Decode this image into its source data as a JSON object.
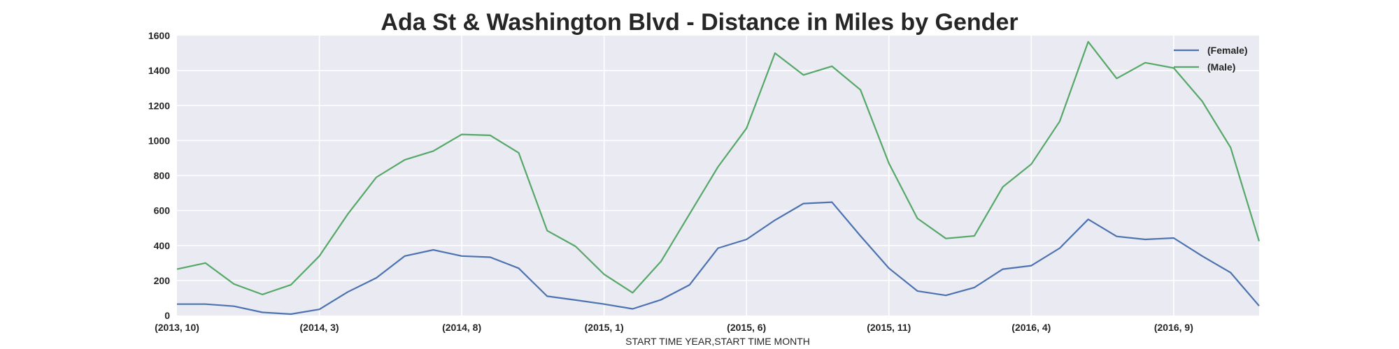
{
  "chart_data": {
    "type": "line",
    "title": "Ada St & Washington Blvd - Distance in Miles by Gender",
    "xlabel": "START TIME YEAR,START TIME MONTH",
    "ylabel": "",
    "ylim": [
      0,
      1600
    ],
    "yticks": [
      "0",
      "200",
      "400",
      "600",
      "800",
      "1000",
      "1200",
      "1400",
      "1600"
    ],
    "x": [
      "(2013, 10)",
      "(2013, 11)",
      "(2013, 12)",
      "(2014, 1)",
      "(2014, 2)",
      "(2014, 3)",
      "(2014, 4)",
      "(2014, 5)",
      "(2014, 6)",
      "(2014, 7)",
      "(2014, 8)",
      "(2014, 9)",
      "(2014, 10)",
      "(2014, 11)",
      "(2014, 12)",
      "(2015, 1)",
      "(2015, 2)",
      "(2015, 3)",
      "(2015, 4)",
      "(2015, 5)",
      "(2015, 6)",
      "(2015, 7)",
      "(2015, 8)",
      "(2015, 9)",
      "(2015, 10)",
      "(2015, 11)",
      "(2015, 12)",
      "(2016, 1)",
      "(2016, 2)",
      "(2016, 3)",
      "(2016, 4)",
      "(2016, 5)",
      "(2016, 6)",
      "(2016, 7)",
      "(2016, 8)",
      "(2016, 9)",
      "(2016, 10)",
      "(2016, 11)",
      "(2016, 12)"
    ],
    "xtick_labels": [
      "(2013, 10)",
      "(2014, 3)",
      "(2014, 8)",
      "(2015, 1)",
      "(2015, 6)",
      "(2015, 11)",
      "(2016, 4)",
      "(2016, 9)"
    ],
    "grid": true,
    "legend_position": "top-right",
    "background": "#eaeaf2",
    "series": [
      {
        "name": "(Female)",
        "color": "#4c72b0",
        "values": [
          65,
          65,
          53,
          18,
          8,
          35,
          135,
          215,
          340,
          375,
          340,
          333,
          270,
          110,
          88,
          65,
          38,
          90,
          175,
          385,
          435,
          545,
          640,
          648,
          455,
          270,
          140,
          115,
          160,
          265,
          285,
          385,
          550,
          452,
          435,
          443,
          340,
          245,
          55
        ]
      },
      {
        "name": "(Male)",
        "color": "#55a868",
        "values": [
          265,
          300,
          180,
          120,
          175,
          340,
          580,
          790,
          890,
          940,
          1035,
          1030,
          930,
          485,
          395,
          235,
          130,
          310,
          580,
          850,
          1070,
          1500,
          1375,
          1425,
          1290,
          870,
          555,
          440,
          455,
          735,
          865,
          1110,
          1565,
          1355,
          1445,
          1415,
          1225,
          960,
          425
        ]
      }
    ]
  }
}
